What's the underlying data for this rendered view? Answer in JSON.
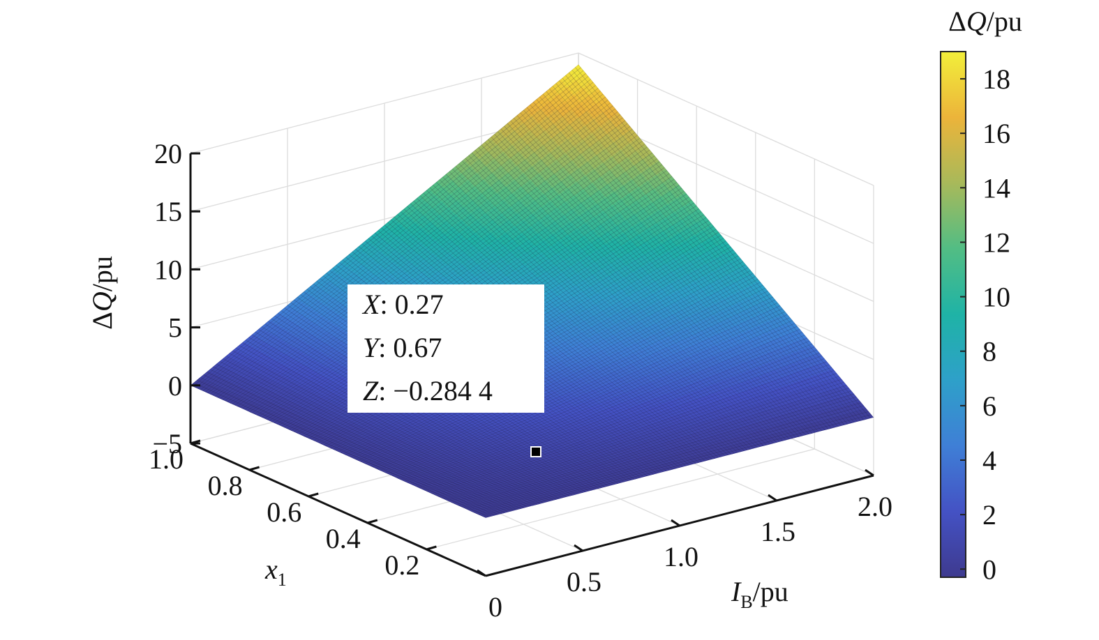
{
  "chart_data": {
    "type": "surface",
    "title": "",
    "xlabel": {
      "main": "x",
      "sub": "1"
    },
    "ylabel": {
      "main": "I",
      "sub": "B",
      "unit": "/pu"
    },
    "zlabel": {
      "delta": "Δ",
      "var": "Q",
      "unit": "/pu"
    },
    "xlim": [
      0,
      1
    ],
    "ylim": [
      0,
      2
    ],
    "zlim": [
      -5,
      20
    ],
    "x_ticks": [
      "0.2",
      "0.4",
      "0.6",
      "0.8",
      "1.0"
    ],
    "x_tick_values": [
      0.2,
      0.4,
      0.6,
      0.8,
      1.0
    ],
    "y_ticks": [
      "0",
      "0.5",
      "1.0",
      "1.5",
      "2.0"
    ],
    "y_tick_values": [
      0,
      0.5,
      1.0,
      1.5,
      2.0
    ],
    "z_ticks": [
      "−5",
      "0",
      "5",
      "10",
      "15",
      "20"
    ],
    "z_tick_values": [
      -5,
      0,
      5,
      10,
      15,
      20
    ],
    "corner_values": {
      "x0_y0": 0,
      "x0_y2": 0,
      "x1_y0": 0,
      "x1_y2": 19
    },
    "grid": true,
    "colormap": "parula",
    "colorbar": {
      "title": {
        "delta": "Δ",
        "var": "Q",
        "unit": "/pu"
      },
      "ticks": [
        "0",
        "2",
        "4",
        "6",
        "8",
        "10",
        "12",
        "14",
        "16",
        "18"
      ],
      "tick_values": [
        0,
        2,
        4,
        6,
        8,
        10,
        12,
        14,
        16,
        18
      ],
      "range": [
        -0.3,
        19
      ]
    },
    "datatip": {
      "x_label": "X",
      "x_value": "0.27",
      "y_label": "Y",
      "y_value": "0.67",
      "z_label": "Z",
      "z_value": "−0.284 4",
      "x": 0.27,
      "y": 0.67,
      "z": -0.2844
    }
  }
}
